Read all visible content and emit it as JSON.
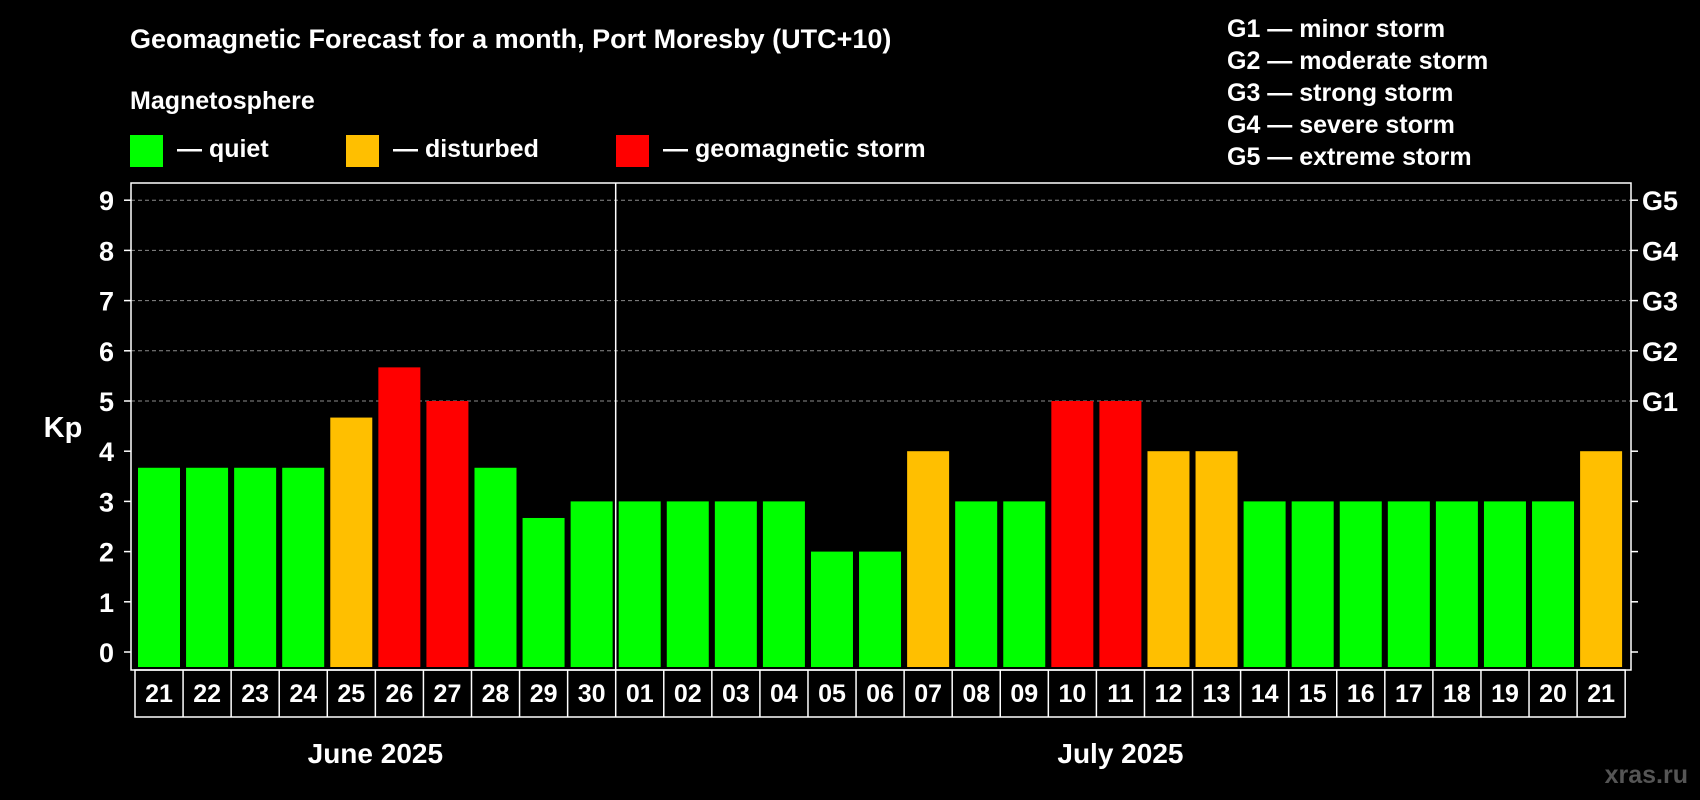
{
  "chart_data": {
    "type": "bar",
    "title": "Geomagnetic Forecast for a month, Port Moresby (UTC+10)",
    "legend_heading": "Magnetosphere",
    "legend": [
      {
        "label": "— quiet",
        "color": "#00ff00",
        "key": "quiet"
      },
      {
        "label": "— disturbed",
        "color": "#ffbf00",
        "key": "disturbed"
      },
      {
        "label": "— geomagnetic storm",
        "color": "#ff0000",
        "key": "storm"
      }
    ],
    "storm_scale": [
      "G1 — minor storm",
      "G2 — moderate storm",
      "G3 — strong storm",
      "G4 — severe storm",
      "G5 — extreme storm"
    ],
    "ylabel": "Kp",
    "ylim": [
      0,
      9
    ],
    "yticks": [
      "0",
      "1",
      "2",
      "3",
      "4",
      "5",
      "6",
      "7",
      "8",
      "9"
    ],
    "right_ticks": [
      {
        "kp": 5,
        "label": "G1"
      },
      {
        "kp": 6,
        "label": "G2"
      },
      {
        "kp": 7,
        "label": "G3"
      },
      {
        "kp": 8,
        "label": "G4"
      },
      {
        "kp": 9,
        "label": "G5"
      }
    ],
    "grid": "horizontal dashed at Kp 5-9",
    "categories": [
      "21",
      "22",
      "23",
      "24",
      "25",
      "26",
      "27",
      "28",
      "29",
      "30",
      "01",
      "02",
      "03",
      "04",
      "05",
      "06",
      "07",
      "08",
      "09",
      "10",
      "11",
      "12",
      "13",
      "14",
      "15",
      "16",
      "17",
      "18",
      "19",
      "20",
      "21"
    ],
    "values": [
      3.67,
      3.67,
      3.67,
      3.67,
      4.67,
      5.67,
      5,
      3.67,
      2.67,
      3,
      3,
      3,
      3,
      3,
      2,
      2,
      4,
      3,
      3,
      5,
      5,
      4,
      4,
      3,
      3,
      3,
      3,
      3,
      3,
      3,
      4
    ],
    "levels": [
      "quiet",
      "quiet",
      "quiet",
      "quiet",
      "disturbed",
      "storm",
      "storm",
      "quiet",
      "quiet",
      "quiet",
      "quiet",
      "quiet",
      "quiet",
      "quiet",
      "quiet",
      "quiet",
      "disturbed",
      "quiet",
      "quiet",
      "storm",
      "storm",
      "disturbed",
      "disturbed",
      "quiet",
      "quiet",
      "quiet",
      "quiet",
      "quiet",
      "quiet",
      "quiet",
      "disturbed"
    ],
    "months": [
      {
        "label": "June 2025",
        "first_index": 0,
        "last_index": 9
      },
      {
        "label": "July 2025",
        "first_index": 10,
        "last_index": 30
      }
    ]
  },
  "watermark": "xras.ru"
}
